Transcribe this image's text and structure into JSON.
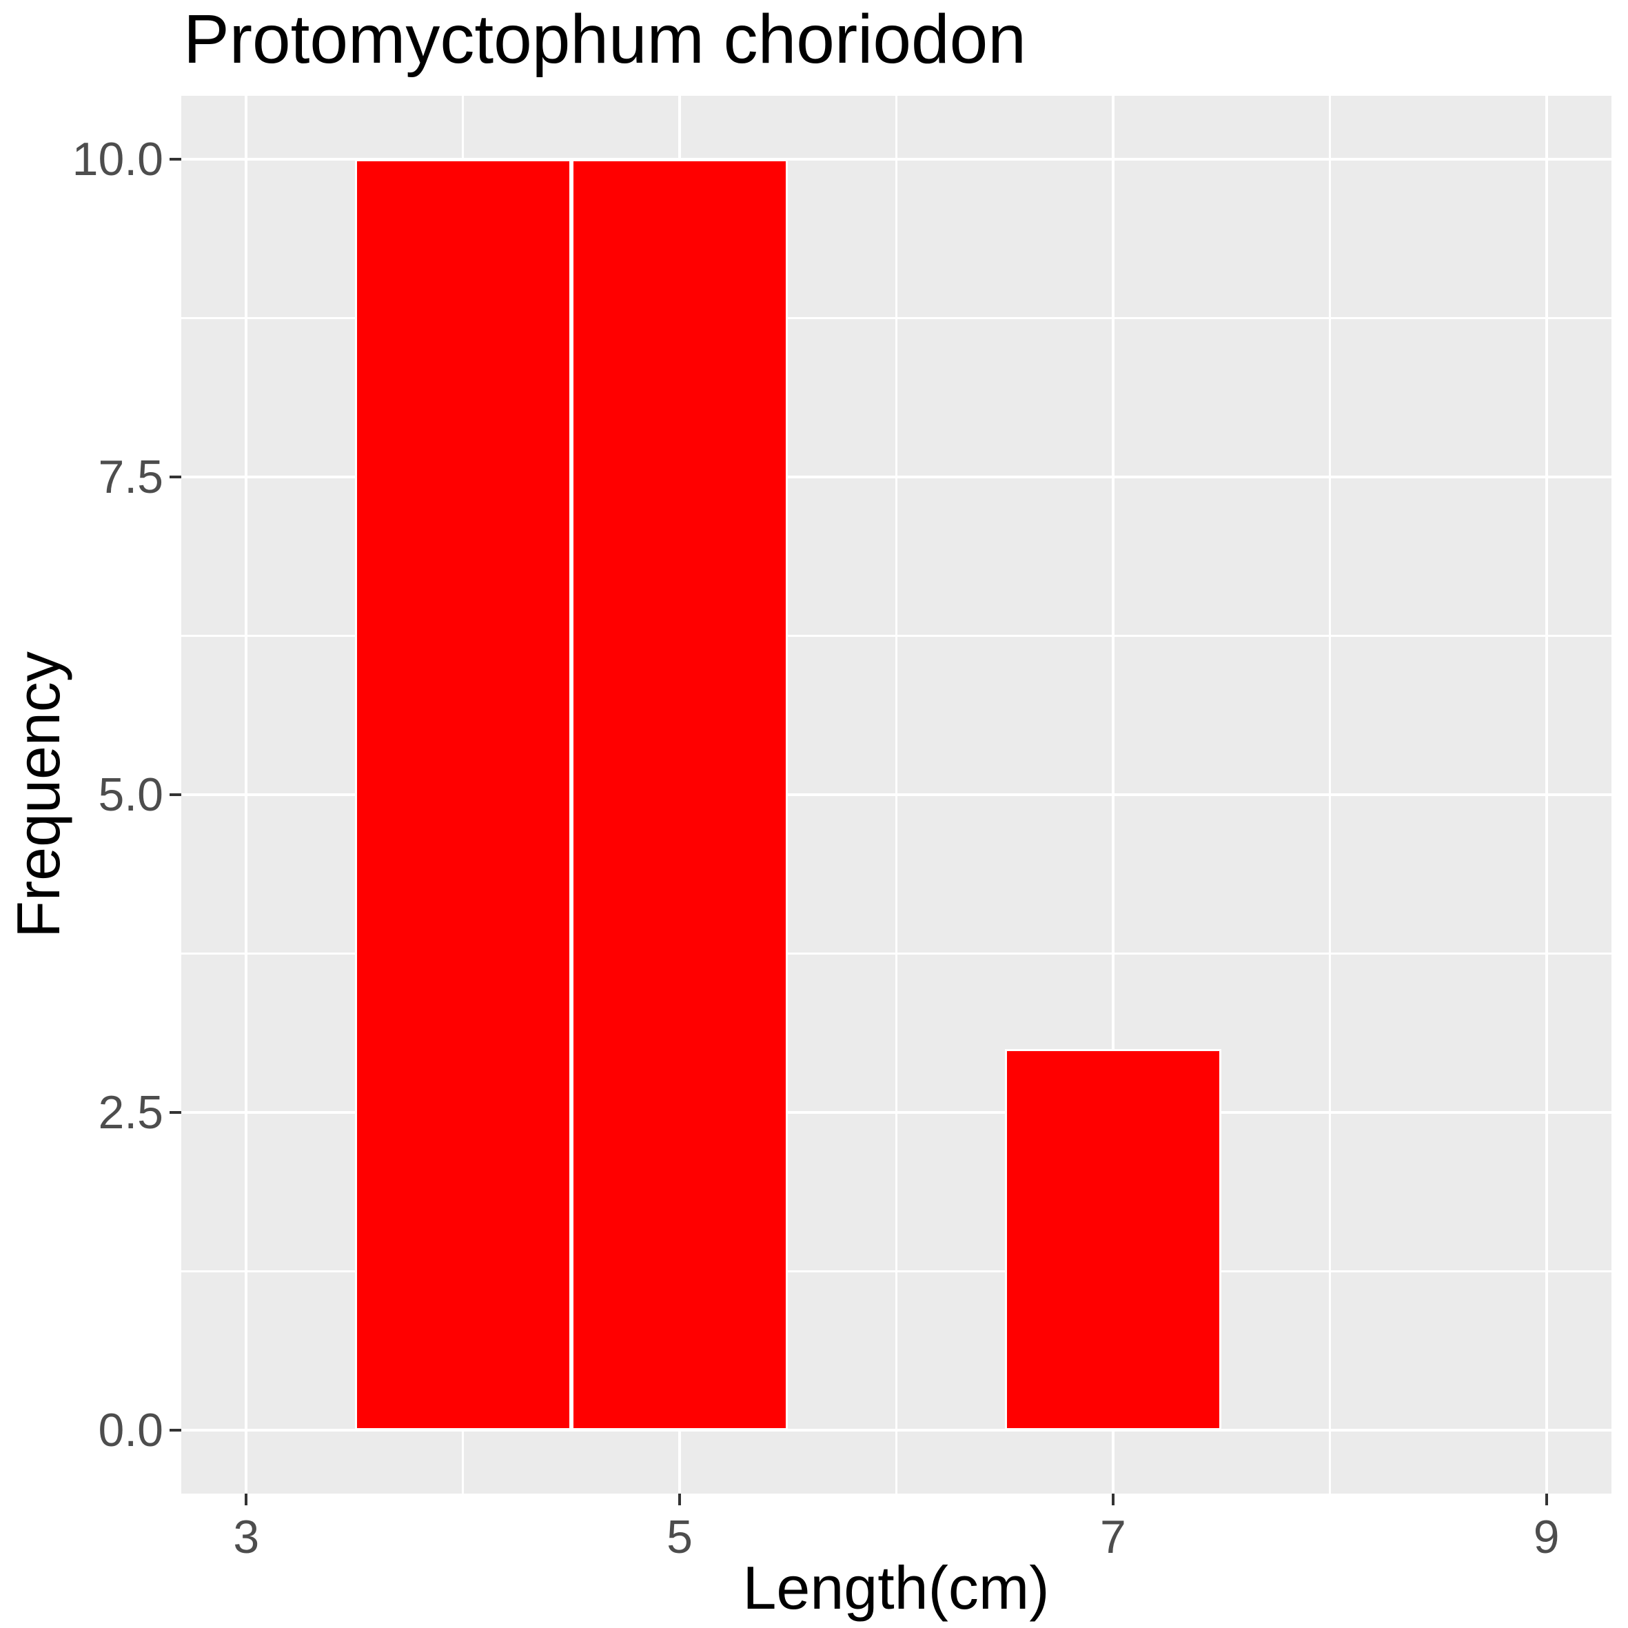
{
  "chart_data": {
    "type": "bar",
    "subtype": "histogram",
    "title": "Protomyctophum choriodon",
    "xlabel": "Length(cm)",
    "ylabel": "Frequency",
    "bars": [
      {
        "x_start": 3.5,
        "x_end": 4.5,
        "count": 10
      },
      {
        "x_start": 4.5,
        "x_end": 5.5,
        "count": 10
      },
      {
        "x_start": 6.5,
        "x_end": 7.5,
        "count": 3
      }
    ],
    "x_ticks": [
      {
        "value": 3,
        "label": "3"
      },
      {
        "value": 5,
        "label": "5"
      },
      {
        "value": 7,
        "label": "7"
      },
      {
        "value": 9,
        "label": "9"
      }
    ],
    "y_ticks": [
      {
        "value": 0,
        "label": "0.0"
      },
      {
        "value": 2.5,
        "label": "2.5"
      },
      {
        "value": 5,
        "label": "5.0"
      },
      {
        "value": 7.5,
        "label": "7.5"
      },
      {
        "value": 10,
        "label": "10.0"
      }
    ],
    "x_minor_gridlines": [
      4,
      6,
      8
    ],
    "y_minor_gridlines": [
      1.25,
      3.75,
      6.25,
      8.75
    ],
    "xlim": [
      2.7,
      9.3
    ],
    "ylim": [
      -0.5,
      10.5
    ],
    "grid": true,
    "legend": "none",
    "colors": {
      "bar_fill": "#FF0000",
      "bar_border": "#FFFFFF",
      "panel_background": "#EBEBEB",
      "gridline": "#FFFFFF",
      "tick_label": "#4D4D4D",
      "tick_mark": "#333333",
      "title_text": "#000000"
    }
  }
}
